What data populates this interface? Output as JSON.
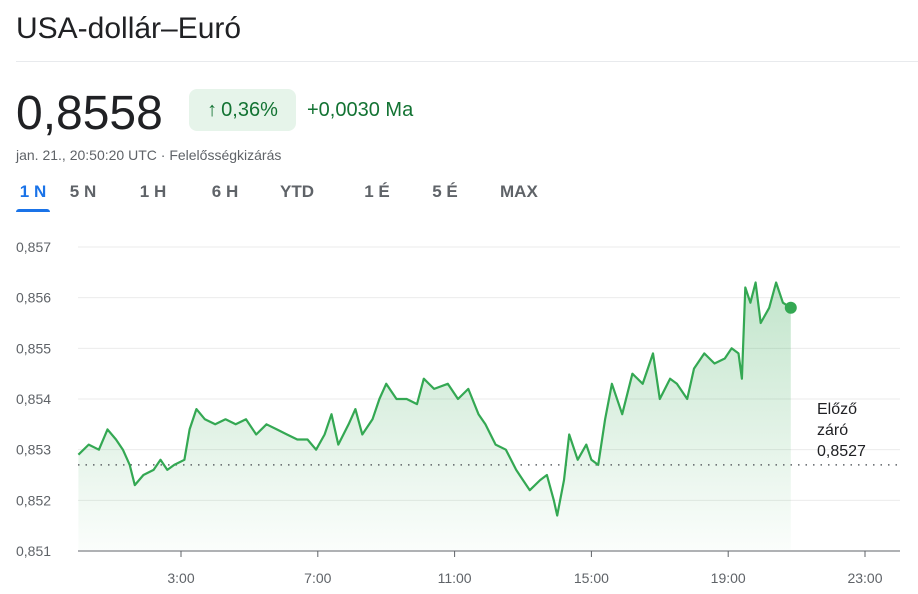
{
  "title": "USA-dollár–Euró",
  "price": "0,8558",
  "change_percent": "0,36%",
  "change_icon": "arrow-up-icon",
  "change_abs": "+0,0030 Ma",
  "timestamp": "jan. 21., 20:50:20 UTC · ",
  "disclaimer": "Felelősségkizárás",
  "tabs": [
    {
      "label": "1 N",
      "active": true
    },
    {
      "label": "5 N"
    },
    {
      "label": "1 H"
    },
    {
      "label": "6 H"
    },
    {
      "label": "YTD"
    },
    {
      "label": "1 É"
    },
    {
      "label": "5 É"
    },
    {
      "label": "MAX"
    }
  ],
  "prev_close": {
    "label1": "Előző",
    "label2": "záró",
    "value": "0,8527"
  },
  "colors": {
    "line": "#34a853",
    "accent": "#1a73e8",
    "positive": "#137333"
  },
  "chart_data": {
    "type": "line",
    "ylim": [
      0.851,
      0.857
    ],
    "y_ticks": [
      "0,851",
      "0,852",
      "0,853",
      "0,854",
      "0,855",
      "0,856",
      "0,857"
    ],
    "xlim_hours": [
      0,
      24
    ],
    "x_ticks": [
      {
        "h": 3,
        "label": "3:00"
      },
      {
        "h": 7,
        "label": "7:00"
      },
      {
        "h": 11,
        "label": "11:00"
      },
      {
        "h": 15,
        "label": "15:00"
      },
      {
        "h": 19,
        "label": "19:00"
      },
      {
        "h": 23,
        "label": "23:00"
      }
    ],
    "previous_close": 0.8527,
    "points": [
      [
        0,
        0.8529
      ],
      [
        0.3,
        0.8531
      ],
      [
        0.6,
        0.853
      ],
      [
        0.85,
        0.8534
      ],
      [
        1.1,
        0.8532
      ],
      [
        1.3,
        0.853
      ],
      [
        1.5,
        0.8527
      ],
      [
        1.65,
        0.8523
      ],
      [
        1.9,
        0.8525
      ],
      [
        2.2,
        0.8526
      ],
      [
        2.4,
        0.8528
      ],
      [
        2.6,
        0.8526
      ],
      [
        2.8,
        0.8527
      ],
      [
        3.1,
        0.8528
      ],
      [
        3.25,
        0.8534
      ],
      [
        3.45,
        0.8538
      ],
      [
        3.7,
        0.8536
      ],
      [
        4,
        0.8535
      ],
      [
        4.3,
        0.8536
      ],
      [
        4.6,
        0.8535
      ],
      [
        4.9,
        0.8536
      ],
      [
        5.2,
        0.8533
      ],
      [
        5.5,
        0.8535
      ],
      [
        5.8,
        0.8534
      ],
      [
        6.1,
        0.8533
      ],
      [
        6.4,
        0.8532
      ],
      [
        6.7,
        0.8532
      ],
      [
        6.95,
        0.853
      ],
      [
        7.2,
        0.8533
      ],
      [
        7.4,
        0.8537
      ],
      [
        7.6,
        0.8531
      ],
      [
        7.9,
        0.8535
      ],
      [
        8.1,
        0.8538
      ],
      [
        8.3,
        0.8533
      ],
      [
        8.6,
        0.8536
      ],
      [
        8.8,
        0.854
      ],
      [
        9,
        0.8543
      ],
      [
        9.3,
        0.854
      ],
      [
        9.6,
        0.854
      ],
      [
        9.9,
        0.8539
      ],
      [
        10.1,
        0.8544
      ],
      [
        10.4,
        0.8542
      ],
      [
        10.8,
        0.8543
      ],
      [
        11.1,
        0.854
      ],
      [
        11.4,
        0.8542
      ],
      [
        11.7,
        0.8537
      ],
      [
        11.9,
        0.8535
      ],
      [
        12.2,
        0.8531
      ],
      [
        12.5,
        0.853
      ],
      [
        12.8,
        0.8526
      ],
      [
        13,
        0.8524
      ],
      [
        13.2,
        0.8522
      ],
      [
        13.5,
        0.8524
      ],
      [
        13.7,
        0.8525
      ],
      [
        13.9,
        0.852
      ],
      [
        14,
        0.8517
      ],
      [
        14.2,
        0.8524
      ],
      [
        14.35,
        0.8533
      ],
      [
        14.6,
        0.8528
      ],
      [
        14.85,
        0.8531
      ],
      [
        15,
        0.8528
      ],
      [
        15.2,
        0.8527
      ],
      [
        15.4,
        0.8536
      ],
      [
        15.6,
        0.8543
      ],
      [
        15.9,
        0.8537
      ],
      [
        16.2,
        0.8545
      ],
      [
        16.5,
        0.8543
      ],
      [
        16.8,
        0.8549
      ],
      [
        17,
        0.854
      ],
      [
        17.3,
        0.8544
      ],
      [
        17.5,
        0.8543
      ],
      [
        17.8,
        0.854
      ],
      [
        18,
        0.8546
      ],
      [
        18.3,
        0.8549
      ],
      [
        18.6,
        0.8547
      ],
      [
        18.9,
        0.8548
      ],
      [
        19.1,
        0.855
      ],
      [
        19.3,
        0.8549
      ],
      [
        19.4,
        0.8544
      ],
      [
        19.5,
        0.8562
      ],
      [
        19.65,
        0.8559
      ],
      [
        19.8,
        0.8563
      ],
      [
        19.95,
        0.8555
      ],
      [
        20.2,
        0.8558
      ],
      [
        20.4,
        0.8563
      ],
      [
        20.6,
        0.8559
      ],
      [
        20.83,
        0.8558
      ]
    ]
  }
}
